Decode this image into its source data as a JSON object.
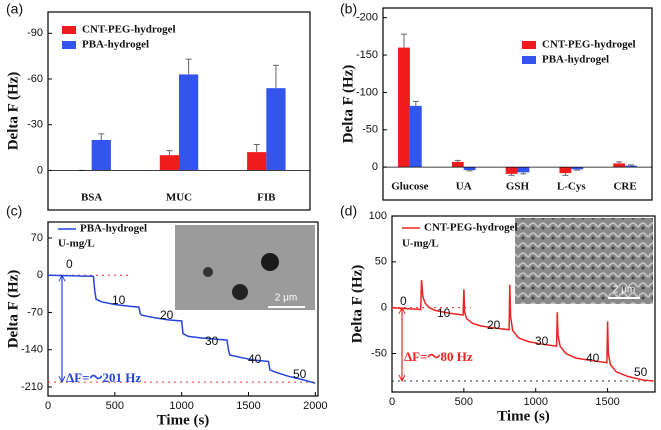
{
  "chart_data": [
    {
      "type": "bar",
      "panel_label": "(a)",
      "y_label": "Delta F (Hz)",
      "categories": [
        "BSA",
        "MUC",
        "FIB"
      ],
      "series": [
        {
          "name": "CNT-PEG-hydrogel",
          "color": "#ee1c1c",
          "values": [
            0,
            -10,
            -12
          ],
          "errors": [
            0,
            3,
            5
          ]
        },
        {
          "name": "PBA-hydrogel",
          "color": "#3355ee",
          "values": [
            -20,
            -63,
            -54
          ],
          "errors": [
            4,
            10,
            15
          ]
        }
      ],
      "ylim": [
        -104,
        26
      ],
      "yticks": [
        -90,
        -60,
        -30,
        0
      ],
      "y_inverted": true,
      "legend": "upper-left"
    },
    {
      "type": "bar",
      "panel_label": "(b)",
      "y_label": "Delta F (Hz)",
      "categories": [
        "Glucose",
        "UA",
        "GSH",
        "L-Cys",
        "CRE"
      ],
      "series": [
        {
          "name": "CNT-PEG-hydrogel",
          "color": "#ee1c1c",
          "values": [
            -160,
            -7,
            9,
            8,
            -5
          ],
          "errors": [
            18,
            2,
            2,
            3,
            2
          ]
        },
        {
          "name": "PBA-hydrogel",
          "color": "#3355ee",
          "values": [
            -82,
            4,
            7,
            3,
            -2
          ],
          "errors": [
            6,
            1,
            2,
            1,
            1
          ]
        }
      ],
      "ylim": [
        -213,
        44
      ],
      "yticks": [
        -200,
        -150,
        -100,
        -50,
        0
      ],
      "y_inverted": true,
      "legend": "upper-right"
    },
    {
      "type": "line",
      "panel_label": "(c)",
      "y_label": "Delta F (Hz)",
      "x_label": "Time (s)",
      "x": [
        0,
        340,
        350,
        360,
        400,
        500,
        600,
        680,
        690,
        700,
        800,
        900,
        1000,
        1010,
        1050,
        1150,
        1250,
        1340,
        1350,
        1360,
        1450,
        1550,
        1650,
        1660,
        1700,
        1800,
        1900,
        2000
      ],
      "series": [
        {
          "name": "PBA-hydrogel",
          "color": "#2244dd",
          "values": [
            0,
            -2,
            -30,
            -45,
            -50,
            -55,
            -58,
            -60,
            -72,
            -75,
            -80,
            -84,
            -86,
            -110,
            -115,
            -118,
            -120,
            -122,
            -140,
            -150,
            -155,
            -160,
            -162,
            -178,
            -182,
            -190,
            -196,
            -203
          ]
        }
      ],
      "xlim": [
        0,
        2020
      ],
      "xticks": [
        0,
        500,
        1000,
        1500,
        2000
      ],
      "ylim": [
        -227,
        100
      ],
      "yticks": [
        70,
        0,
        -70,
        -140,
        -210
      ],
      "unit_label": "U-mg/L",
      "step_labels": [
        0,
        10,
        20,
        30,
        40,
        50
      ],
      "delta_label": "ΔF=～201 Hz",
      "ref_lines": [
        0,
        -201
      ],
      "inset_scale": "2 μm"
    },
    {
      "type": "line",
      "panel_label": "(d)",
      "y_label": "Delta F (Hz)",
      "x_label": "Time (s)",
      "x": [
        0,
        100,
        200,
        205,
        215,
        230,
        260,
        300,
        400,
        495,
        500,
        505,
        520,
        560,
        620,
        700,
        815,
        820,
        825,
        840,
        880,
        950,
        1050,
        1145,
        1150,
        1155,
        1170,
        1210,
        1280,
        1400,
        1495,
        1500,
        1505,
        1520,
        1560,
        1640,
        1750,
        1820
      ],
      "series": [
        {
          "name": "CNT-PEG-hydrogel",
          "color": "#ee2222",
          "values": [
            0,
            -1,
            -2,
            30,
            12,
            5,
            0,
            -3,
            -6,
            -8,
            20,
            -5,
            -12,
            -17,
            -20,
            -22,
            -24,
            25,
            -10,
            -25,
            -33,
            -37,
            -40,
            -42,
            -5,
            -30,
            -42,
            -50,
            -55,
            -58,
            -60,
            -15,
            -50,
            -62,
            -70,
            -75,
            -79,
            -80
          ]
        }
      ],
      "xlim": [
        0,
        1830
      ],
      "xticks": [
        0,
        500,
        1000,
        1500
      ],
      "ylim": [
        -92,
        100
      ],
      "yticks": [
        100,
        50,
        0,
        -50
      ],
      "unit_label": "U-mg/L",
      "step_labels": [
        0,
        10,
        20,
        30,
        40,
        50
      ],
      "delta_label": "ΔF=～80 Hz",
      "ref_lines": [
        0,
        -80
      ],
      "inset_scale": "2 μm"
    }
  ]
}
